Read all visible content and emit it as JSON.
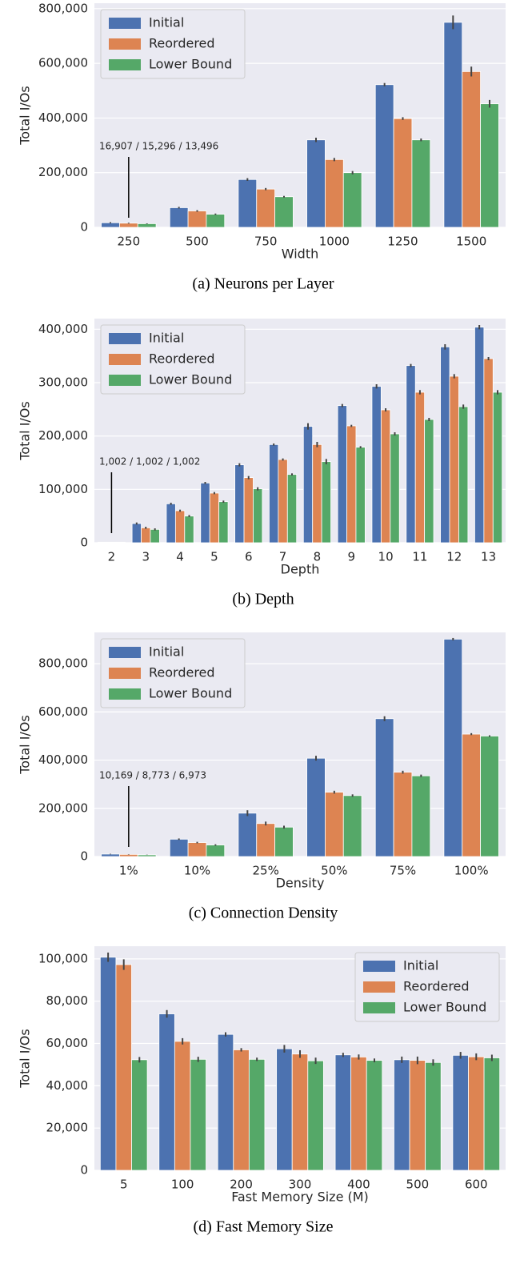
{
  "chart_data": [
    {
      "type": "bar",
      "caption": "(a) Neurons per Layer",
      "xlabel": "Width",
      "ylabel": "Total I/Os",
      "categories": [
        "250",
        "500",
        "750",
        "1000",
        "1250",
        "1500"
      ],
      "series": [
        {
          "name": "Initial",
          "color": "#4c72b0",
          "values": [
            16907,
            72000,
            175000,
            320000,
            522000,
            750000
          ],
          "errors": [
            2000,
            3000,
            5000,
            8000,
            6000,
            25000
          ]
        },
        {
          "name": "Reordered",
          "color": "#dd8452",
          "values": [
            15296,
            60000,
            140000,
            248000,
            398000,
            570000
          ],
          "errors": [
            1500,
            3000,
            4000,
            6000,
            5000,
            18000
          ]
        },
        {
          "name": "Lower Bound",
          "color": "#55a868",
          "values": [
            13496,
            48000,
            112000,
            200000,
            320000,
            452000
          ],
          "errors": [
            1200,
            2500,
            3000,
            6000,
            5000,
            14000
          ]
        }
      ],
      "annotation": "16,907 / 15,296 / 13,496",
      "ylim": [
        0,
        820000
      ],
      "yticks": [
        0,
        {
          "value": 200000,
          "label": "200,000"
        },
        {
          "value": 400000,
          "label": "400,000"
        },
        {
          "value": 600000,
          "label": "600,000"
        },
        {
          "value": 800000,
          "label": "800,000"
        }
      ],
      "grid": true,
      "legend": "upper left"
    },
    {
      "type": "bar",
      "caption": "(b) Depth",
      "xlabel": "Depth",
      "ylabel": "Total I/Os",
      "categories": [
        "2",
        "3",
        "4",
        "5",
        "6",
        "7",
        "8",
        "9",
        "10",
        "11",
        "12",
        "13"
      ],
      "series": [
        {
          "name": "Initial",
          "color": "#4c72b0",
          "values": [
            1002,
            36000,
            73000,
            112000,
            146000,
            184000,
            218000,
            257000,
            293000,
            332000,
            367000,
            404000
          ],
          "errors": [
            0,
            2000,
            2000,
            2000,
            3000,
            2000,
            6000,
            3000,
            4000,
            3000,
            5000,
            4000
          ]
        },
        {
          "name": "Reordered",
          "color": "#dd8452",
          "values": [
            1002,
            28000,
            60000,
            93000,
            122000,
            156000,
            184000,
            219000,
            249000,
            282000,
            312000,
            345000
          ],
          "errors": [
            0,
            2000,
            2000,
            2000,
            3000,
            2000,
            5000,
            2000,
            3000,
            4000,
            4000,
            3000
          ]
        },
        {
          "name": "Lower Bound",
          "color": "#55a868",
          "values": [
            1002,
            25000,
            50000,
            77000,
            101000,
            128000,
            152000,
            179000,
            204000,
            231000,
            255000,
            282000
          ],
          "errors": [
            0,
            2000,
            2000,
            2000,
            3000,
            2000,
            5000,
            2000,
            3000,
            3000,
            4000,
            4000
          ]
        }
      ],
      "annotation": "1,002 / 1,002 / 1,002",
      "ylim": [
        0,
        420000
      ],
      "yticks": [
        0,
        {
          "value": 100000,
          "label": "100,000"
        },
        {
          "value": 200000,
          "label": "200,000"
        },
        {
          "value": 300000,
          "label": "300,000"
        },
        {
          "value": 400000,
          "label": "400,000"
        }
      ],
      "grid": true,
      "legend": "upper left"
    },
    {
      "type": "bar",
      "caption": "(c) Connection Density",
      "xlabel": "Density",
      "ylabel": "Total I/Os",
      "categories": [
        "1%",
        "10%",
        "25%",
        "50%",
        "75%",
        "100%"
      ],
      "series": [
        {
          "name": "Initial",
          "color": "#4c72b0",
          "values": [
            10169,
            72000,
            180000,
            408000,
            572000,
            902000
          ],
          "errors": [
            1000,
            3000,
            12000,
            10000,
            10000,
            5000
          ]
        },
        {
          "name": "Reordered",
          "color": "#dd8452",
          "values": [
            8773,
            58000,
            137000,
            267000,
            350000,
            508000
          ],
          "errors": [
            800,
            3000,
            8000,
            6000,
            6000,
            4000
          ]
        },
        {
          "name": "Lower Bound",
          "color": "#55a868",
          "values": [
            6973,
            48000,
            122000,
            253000,
            335000,
            500000
          ],
          "errors": [
            600,
            3000,
            6000,
            5000,
            5000,
            3000
          ]
        }
      ],
      "annotation": "10,169 / 8,773 / 6,973",
      "ylim": [
        0,
        930000
      ],
      "yticks": [
        0,
        {
          "value": 200000,
          "label": "200,000"
        },
        {
          "value": 400000,
          "label": "400,000"
        },
        {
          "value": 600000,
          "label": "600,000"
        },
        {
          "value": 800000,
          "label": "800,000"
        }
      ],
      "grid": true,
      "legend": "upper left"
    },
    {
      "type": "bar",
      "caption": "(d) Fast Memory Size",
      "xlabel": "Fast Memory Size (M)",
      "ylabel": "Total I/Os",
      "categories": [
        "5",
        "100",
        "200",
        "300",
        "400",
        "500",
        "600"
      ],
      "series": [
        {
          "name": "Initial",
          "color": "#4c72b0",
          "values": [
            100800,
            74000,
            64300,
            57500,
            54600,
            52300,
            54400
          ],
          "errors": [
            2200,
            1800,
            1000,
            1800,
            1000,
            1500,
            1600
          ]
        },
        {
          "name": "Reordered",
          "color": "#dd8452",
          "values": [
            97300,
            61000,
            57000,
            55000,
            53600,
            52000,
            53700
          ],
          "errors": [
            2500,
            1500,
            800,
            1800,
            1200,
            1800,
            1600
          ]
        },
        {
          "name": "Lower Bound",
          "color": "#55a868",
          "values": [
            52300,
            52500,
            52500,
            51800,
            52000,
            51000,
            53200
          ],
          "errors": [
            1300,
            1200,
            800,
            1500,
            900,
            1500,
            1500
          ]
        }
      ],
      "ylim": [
        0,
        106000
      ],
      "yticks": [
        0,
        {
          "value": 20000,
          "label": "20,000"
        },
        {
          "value": 40000,
          "label": "40,000"
        },
        {
          "value": 60000,
          "label": "60,000"
        },
        {
          "value": 80000,
          "label": "80,000"
        },
        {
          "value": 100000,
          "label": "100,000"
        }
      ],
      "grid": true,
      "legend": "upper right"
    }
  ]
}
